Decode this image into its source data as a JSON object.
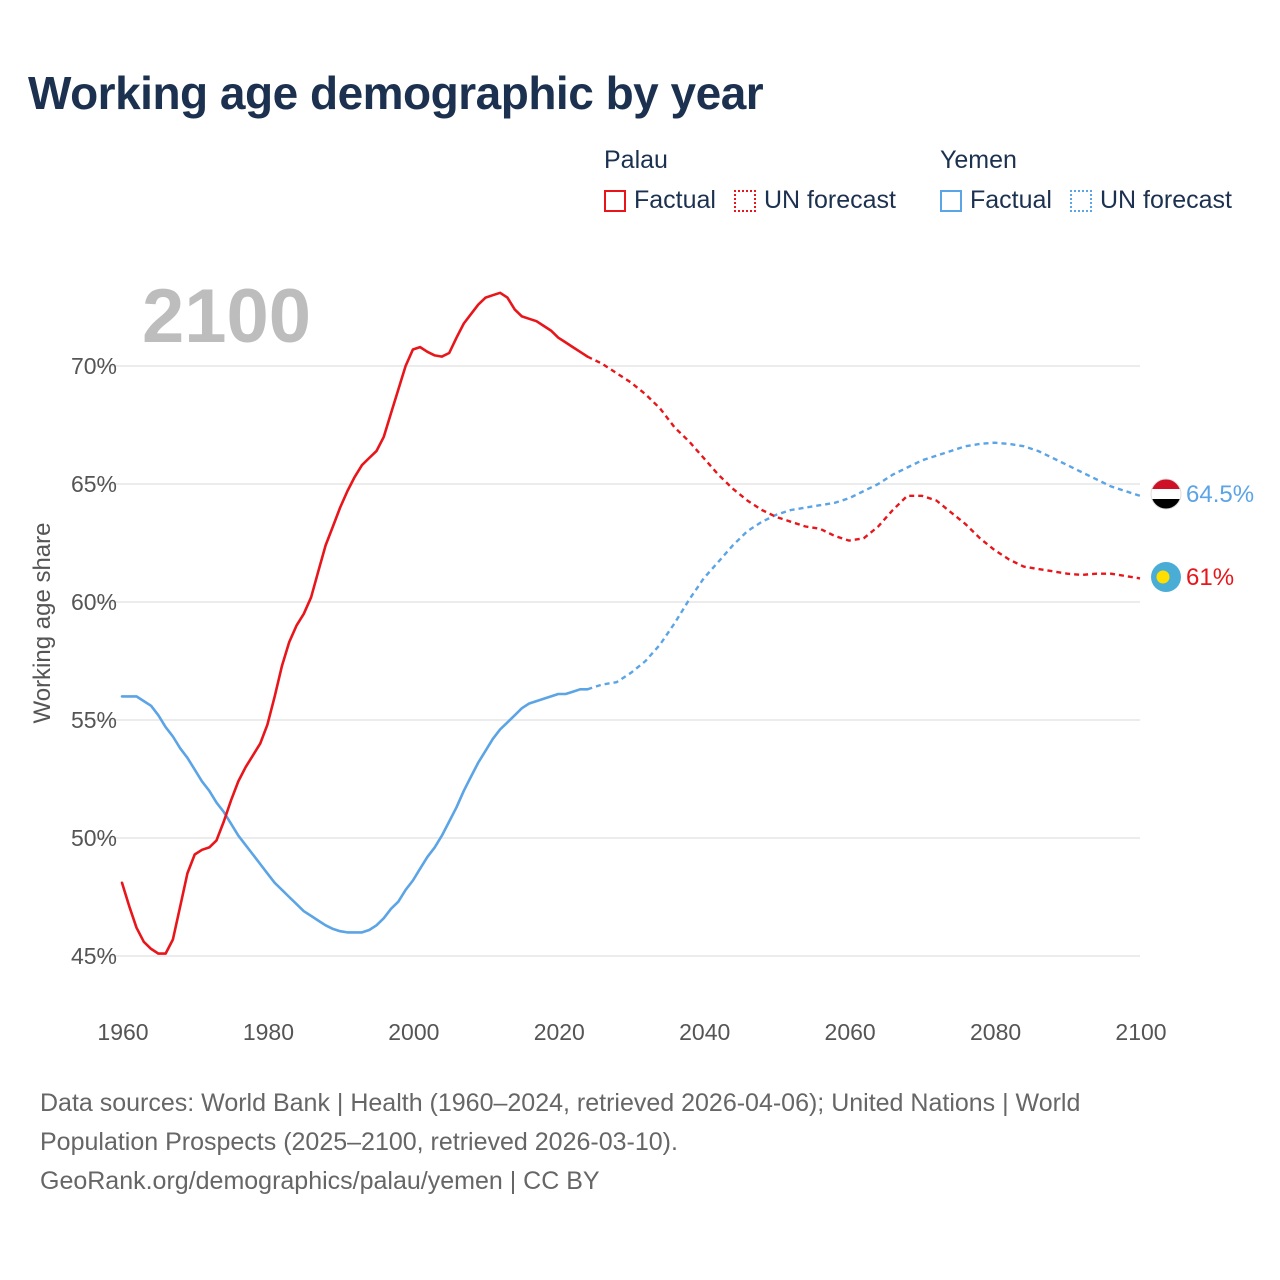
{
  "title": "Working age demographic by year",
  "legend": {
    "groups": [
      {
        "name": "Palau",
        "color": "#e8161b",
        "factual_label": "Factual",
        "forecast_label": "UN forecast"
      },
      {
        "name": "Yemen",
        "color": "#5ba4e6",
        "factual_label": "Factual",
        "forecast_label": "UN forecast"
      }
    ]
  },
  "year_watermark": "2100",
  "source": {
    "line1": "Data sources: World Bank | Health (1960–2024, retrieved 2026-04-06); United Nations | World",
    "line2": "Population Prospects (2025–2100, retrieved 2026-03-10).",
    "line3": "GeoRank.org/demographics/palau/yemen | CC BY"
  },
  "chart_data": {
    "type": "line",
    "title": "Working age demographic by year",
    "xlabel": "",
    "ylabel": "Working age share",
    "xlim": [
      1960,
      2100
    ],
    "ylim": [
      44.5,
      73
    ],
    "x_ticks": [
      1960,
      1980,
      2000,
      2020,
      2040,
      2060,
      2080,
      2100
    ],
    "x_tick_labels": [
      "1960",
      "1980",
      "2000",
      "2020",
      "2040",
      "2060",
      "2080",
      "2100"
    ],
    "y_ticks": [
      45,
      50,
      55,
      60,
      65,
      70
    ],
    "y_tick_labels": [
      "45%",
      "50%",
      "55%",
      "60%",
      "65%",
      "70%"
    ],
    "grid": true,
    "forecast_start": 2024,
    "series": [
      {
        "name": "Palau",
        "color": "#e8161b",
        "end_label": "61%",
        "flag": "palau-flag",
        "points": [
          [
            1960,
            48.1
          ],
          [
            1961,
            47.1
          ],
          [
            1962,
            46.2
          ],
          [
            1963,
            45.6
          ],
          [
            1964,
            45.3
          ],
          [
            1965,
            45.1
          ],
          [
            1966,
            45.1
          ],
          [
            1967,
            45.7
          ],
          [
            1968,
            47.1
          ],
          [
            1969,
            48.5
          ],
          [
            1970,
            49.3
          ],
          [
            1971,
            49.5
          ],
          [
            1972,
            49.6
          ],
          [
            1973,
            49.9
          ],
          [
            1974,
            50.7
          ],
          [
            1975,
            51.6
          ],
          [
            1976,
            52.4
          ],
          [
            1977,
            53.0
          ],
          [
            1978,
            53.5
          ],
          [
            1979,
            54.0
          ],
          [
            1980,
            54.8
          ],
          [
            1981,
            56.0
          ],
          [
            1982,
            57.3
          ],
          [
            1983,
            58.3
          ],
          [
            1984,
            59.0
          ],
          [
            1985,
            59.5
          ],
          [
            1986,
            60.2
          ],
          [
            1987,
            61.3
          ],
          [
            1988,
            62.4
          ],
          [
            1989,
            63.2
          ],
          [
            1990,
            64.0
          ],
          [
            1991,
            64.7
          ],
          [
            1992,
            65.3
          ],
          [
            1993,
            65.8
          ],
          [
            1994,
            66.1
          ],
          [
            1995,
            66.4
          ],
          [
            1996,
            67.0
          ],
          [
            1997,
            68.0
          ],
          [
            1998,
            69.0
          ],
          [
            1999,
            70.0
          ],
          [
            2000,
            70.7
          ],
          [
            2001,
            70.8
          ],
          [
            2002,
            70.6
          ],
          [
            2003,
            70.45
          ],
          [
            2004,
            70.4
          ],
          [
            2005,
            70.55
          ],
          [
            2006,
            71.2
          ],
          [
            2007,
            71.8
          ],
          [
            2008,
            72.2
          ],
          [
            2009,
            72.6
          ],
          [
            2010,
            72.9
          ],
          [
            2011,
            73.0
          ],
          [
            2012,
            73.1
          ],
          [
            2013,
            72.9
          ],
          [
            2014,
            72.4
          ],
          [
            2015,
            72.1
          ],
          [
            2016,
            72.0
          ],
          [
            2017,
            71.9
          ],
          [
            2018,
            71.7
          ],
          [
            2019,
            71.5
          ],
          [
            2020,
            71.2
          ],
          [
            2021,
            71.0
          ],
          [
            2022,
            70.8
          ],
          [
            2023,
            70.6
          ],
          [
            2024,
            70.4
          ],
          [
            2026,
            70.1
          ],
          [
            2028,
            69.7
          ],
          [
            2030,
            69.3
          ],
          [
            2032,
            68.8
          ],
          [
            2034,
            68.2
          ],
          [
            2036,
            67.4
          ],
          [
            2038,
            66.8
          ],
          [
            2040,
            66.1
          ],
          [
            2042,
            65.4
          ],
          [
            2044,
            64.8
          ],
          [
            2046,
            64.3
          ],
          [
            2048,
            63.9
          ],
          [
            2050,
            63.6
          ],
          [
            2052,
            63.4
          ],
          [
            2054,
            63.2
          ],
          [
            2056,
            63.1
          ],
          [
            2058,
            62.8
          ],
          [
            2060,
            62.6
          ],
          [
            2062,
            62.7
          ],
          [
            2064,
            63.2
          ],
          [
            2066,
            63.9
          ],
          [
            2068,
            64.5
          ],
          [
            2070,
            64.5
          ],
          [
            2072,
            64.3
          ],
          [
            2074,
            63.8
          ],
          [
            2076,
            63.3
          ],
          [
            2078,
            62.7
          ],
          [
            2080,
            62.2
          ],
          [
            2082,
            61.8
          ],
          [
            2084,
            61.5
          ],
          [
            2086,
            61.4
          ],
          [
            2088,
            61.3
          ],
          [
            2090,
            61.2
          ],
          [
            2092,
            61.15
          ],
          [
            2094,
            61.2
          ],
          [
            2096,
            61.2
          ],
          [
            2098,
            61.1
          ],
          [
            2100,
            61.0
          ]
        ]
      },
      {
        "name": "Yemen",
        "color": "#5ba4e6",
        "end_label": "64.5%",
        "flag": "yemen-flag",
        "points": [
          [
            1960,
            56.0
          ],
          [
            1961,
            56.0
          ],
          [
            1962,
            56.0
          ],
          [
            1963,
            55.8
          ],
          [
            1964,
            55.6
          ],
          [
            1965,
            55.2
          ],
          [
            1966,
            54.7
          ],
          [
            1967,
            54.3
          ],
          [
            1968,
            53.8
          ],
          [
            1969,
            53.4
          ],
          [
            1970,
            52.9
          ],
          [
            1971,
            52.4
          ],
          [
            1972,
            52.0
          ],
          [
            1973,
            51.5
          ],
          [
            1974,
            51.1
          ],
          [
            1975,
            50.6
          ],
          [
            1976,
            50.1
          ],
          [
            1977,
            49.7
          ],
          [
            1978,
            49.3
          ],
          [
            1979,
            48.9
          ],
          [
            1980,
            48.5
          ],
          [
            1981,
            48.1
          ],
          [
            1982,
            47.8
          ],
          [
            1983,
            47.5
          ],
          [
            1984,
            47.2
          ],
          [
            1985,
            46.9
          ],
          [
            1986,
            46.7
          ],
          [
            1987,
            46.5
          ],
          [
            1988,
            46.3
          ],
          [
            1989,
            46.15
          ],
          [
            1990,
            46.05
          ],
          [
            1991,
            46.0
          ],
          [
            1992,
            46.0
          ],
          [
            1993,
            46.0
          ],
          [
            1994,
            46.1
          ],
          [
            1995,
            46.3
          ],
          [
            1996,
            46.6
          ],
          [
            1997,
            47.0
          ],
          [
            1998,
            47.3
          ],
          [
            1999,
            47.8
          ],
          [
            2000,
            48.2
          ],
          [
            2001,
            48.7
          ],
          [
            2002,
            49.2
          ],
          [
            2003,
            49.6
          ],
          [
            2004,
            50.1
          ],
          [
            2005,
            50.7
          ],
          [
            2006,
            51.3
          ],
          [
            2007,
            52.0
          ],
          [
            2008,
            52.6
          ],
          [
            2009,
            53.2
          ],
          [
            2010,
            53.7
          ],
          [
            2011,
            54.2
          ],
          [
            2012,
            54.6
          ],
          [
            2013,
            54.9
          ],
          [
            2014,
            55.2
          ],
          [
            2015,
            55.5
          ],
          [
            2016,
            55.7
          ],
          [
            2017,
            55.8
          ],
          [
            2018,
            55.9
          ],
          [
            2019,
            56.0
          ],
          [
            2020,
            56.1
          ],
          [
            2021,
            56.1
          ],
          [
            2022,
            56.2
          ],
          [
            2023,
            56.3
          ],
          [
            2024,
            56.3
          ],
          [
            2026,
            56.5
          ],
          [
            2028,
            56.6
          ],
          [
            2030,
            57.0
          ],
          [
            2032,
            57.5
          ],
          [
            2034,
            58.2
          ],
          [
            2036,
            59.1
          ],
          [
            2038,
            60.1
          ],
          [
            2040,
            61.0
          ],
          [
            2042,
            61.7
          ],
          [
            2044,
            62.4
          ],
          [
            2046,
            63.0
          ],
          [
            2048,
            63.4
          ],
          [
            2050,
            63.7
          ],
          [
            2052,
            63.9
          ],
          [
            2054,
            64.0
          ],
          [
            2056,
            64.1
          ],
          [
            2058,
            64.2
          ],
          [
            2060,
            64.4
          ],
          [
            2062,
            64.7
          ],
          [
            2064,
            65.0
          ],
          [
            2066,
            65.4
          ],
          [
            2068,
            65.7
          ],
          [
            2070,
            66.0
          ],
          [
            2072,
            66.2
          ],
          [
            2074,
            66.4
          ],
          [
            2076,
            66.6
          ],
          [
            2078,
            66.7
          ],
          [
            2080,
            66.75
          ],
          [
            2082,
            66.7
          ],
          [
            2084,
            66.6
          ],
          [
            2086,
            66.4
          ],
          [
            2088,
            66.1
          ],
          [
            2090,
            65.8
          ],
          [
            2092,
            65.5
          ],
          [
            2094,
            65.2
          ],
          [
            2096,
            64.9
          ],
          [
            2098,
            64.7
          ],
          [
            2100,
            64.5
          ]
        ]
      }
    ]
  }
}
